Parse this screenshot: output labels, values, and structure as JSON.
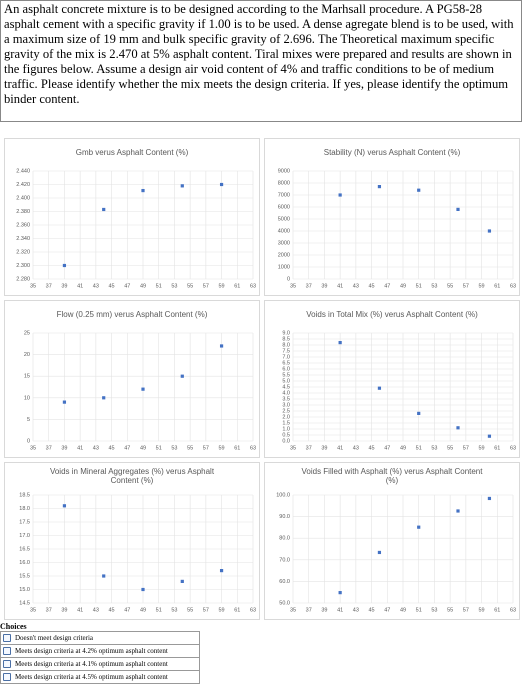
{
  "question": "An asphalt concrete mixture is to be designed according to the Marhsall procedure. A PG58-28 asphalt cement with a specific gravity if 1.00 is to be used. A dense agregate blend is to be used, with a maximum size of 19 mm and bulk specific gravity of 2.696. The Theoretical maximum specific gravity of the mix is 2.470 at 5% asphalt content. Tiral mixes were prepared and results are shown in the figures below. Assume a design air void content of 4% and traffic conditions to be of medium traffic. Please identify whether the mix meets the design criteria. If yes, please identify the optimum binder content.",
  "chart_data": [
    {
      "type": "scatter",
      "title": "Gmb verus Asphalt Content (%)",
      "color": "#4472c4",
      "grid": true,
      "x": [
        39,
        44,
        49,
        54,
        59
      ],
      "values": [
        2.3,
        2.383,
        2.411,
        2.418,
        2.42
      ],
      "xlim": [
        35,
        63
      ],
      "xticks": [
        35,
        37,
        39,
        41,
        43,
        45,
        47,
        49,
        51,
        53,
        55,
        57,
        59,
        61,
        63
      ],
      "ylim": [
        2.28,
        2.44
      ],
      "yticks": [
        {
          "value": 2.28,
          "label": "2.280"
        },
        {
          "value": 2.3,
          "label": "2.300"
        },
        {
          "value": 2.32,
          "label": "2.320"
        },
        {
          "value": 2.34,
          "label": "2.340"
        },
        {
          "value": 2.36,
          "label": "2.360"
        },
        {
          "value": 2.38,
          "label": "2.380"
        },
        {
          "value": 2.4,
          "label": "2.400"
        },
        {
          "value": 2.42,
          "label": "2.420"
        },
        {
          "value": 2.44,
          "label": "2.440"
        }
      ]
    },
    {
      "type": "scatter",
      "title": "Stability (N) verus Asphalt Content (%)",
      "color": "#4472c4",
      "grid": true,
      "x": [
        41,
        46,
        51,
        56,
        60
      ],
      "values": [
        7000,
        7700,
        7400,
        5800,
        4000
      ],
      "xlim": [
        35,
        63
      ],
      "xticks": [
        35,
        37,
        39,
        41,
        43,
        45,
        47,
        49,
        51,
        53,
        55,
        57,
        59,
        61,
        63
      ],
      "ylim": [
        0,
        9000
      ],
      "yticks": [
        0,
        1000,
        2000,
        3000,
        4000,
        5000,
        6000,
        7000,
        8000,
        9000
      ]
    },
    {
      "type": "scatter",
      "title": "Flow (0.25 mm) verus Asphalt Content (%)",
      "color": "#4472c4",
      "grid": true,
      "x": [
        39,
        44,
        49,
        54,
        59
      ],
      "values": [
        9,
        10,
        12,
        15,
        22
      ],
      "xlim": [
        35,
        63
      ],
      "xticks": [
        35,
        37,
        39,
        41,
        43,
        45,
        47,
        49,
        51,
        53,
        55,
        57,
        59,
        61,
        63
      ],
      "ylim": [
        0,
        25
      ],
      "yticks": [
        0,
        5,
        10,
        15,
        20,
        25
      ]
    },
    {
      "type": "scatter",
      "title": "Voids in Total Mix (%) verus Asphalt Content (%)",
      "color": "#4472c4",
      "grid": true,
      "x": [
        41,
        46,
        51,
        56,
        60
      ],
      "values": [
        8.2,
        4.4,
        2.3,
        1.1,
        0.4
      ],
      "xlim": [
        35,
        63
      ],
      "xticks": [
        35,
        37,
        39,
        41,
        43,
        45,
        47,
        49,
        51,
        53,
        55,
        57,
        59,
        61,
        63
      ],
      "ylim": [
        0,
        9
      ],
      "yticks": [
        {
          "value": 0,
          "label": "0.0"
        },
        0.5,
        {
          "value": 1,
          "label": "1.0"
        },
        1.5,
        {
          "value": 2,
          "label": "2.0"
        },
        2.5,
        {
          "value": 3,
          "label": "3.0"
        },
        3.5,
        {
          "value": 4,
          "label": "4.0"
        },
        4.5,
        {
          "value": 5,
          "label": "5.0"
        },
        5.5,
        {
          "value": 6,
          "label": "6.0"
        },
        6.5,
        {
          "value": 7,
          "label": "7.0"
        },
        7.5,
        {
          "value": 8,
          "label": "8.0"
        },
        8.5,
        {
          "value": 9,
          "label": "9.0"
        }
      ]
    },
    {
      "type": "scatter",
      "title": "Voids in Mineral Aggregates (%) verus Asphalt Content (%)",
      "color": "#4472c4",
      "grid": true,
      "x": [
        39,
        44,
        49,
        54,
        59
      ],
      "values": [
        18.1,
        15.5,
        15.0,
        15.3,
        15.7
      ],
      "xlim": [
        35,
        63
      ],
      "xticks": [
        35,
        37,
        39,
        41,
        43,
        45,
        47,
        49,
        51,
        53,
        55,
        57,
        59,
        61,
        63
      ],
      "ylim": [
        14.5,
        18.5
      ],
      "yticks": [
        14.5,
        {
          "value": 15,
          "label": "15.0"
        },
        15.5,
        {
          "value": 16,
          "label": "16.0"
        },
        16.5,
        {
          "value": 17,
          "label": "17.0"
        },
        17.5,
        {
          "value": 18,
          "label": "18.0"
        },
        18.5
      ]
    },
    {
      "type": "scatter",
      "title": "Voids Filled with Asphalt (%) verus Asphalt Content (%)",
      "color": "#4472c4",
      "grid": true,
      "x": [
        41,
        46,
        51,
        56,
        60
      ],
      "values": [
        54.8,
        73.4,
        85.1,
        92.6,
        98.4
      ],
      "xlim": [
        35,
        63
      ],
      "xticks": [
        35,
        37,
        39,
        41,
        43,
        45,
        47,
        49,
        51,
        53,
        55,
        57,
        59,
        61,
        63
      ],
      "ylim": [
        50,
        100
      ],
      "yticks": [
        {
          "value": 50,
          "label": "50.0"
        },
        {
          "value": 60,
          "label": "60.0"
        },
        {
          "value": 70,
          "label": "70.0"
        },
        {
          "value": 80,
          "label": "80.0"
        },
        {
          "value": 90,
          "label": "90.0"
        },
        {
          "value": 100,
          "label": "100.0"
        }
      ]
    }
  ],
  "choices": {
    "title": "Choices",
    "options": [
      "Doesn't meet design criteria",
      "Meets design criteria at 4.2% optimum asphalt content",
      "Meets design criteria at 4.1% optimum asphalt content",
      "Meets design criteria at 4.5% optimum asphalt content"
    ]
  }
}
